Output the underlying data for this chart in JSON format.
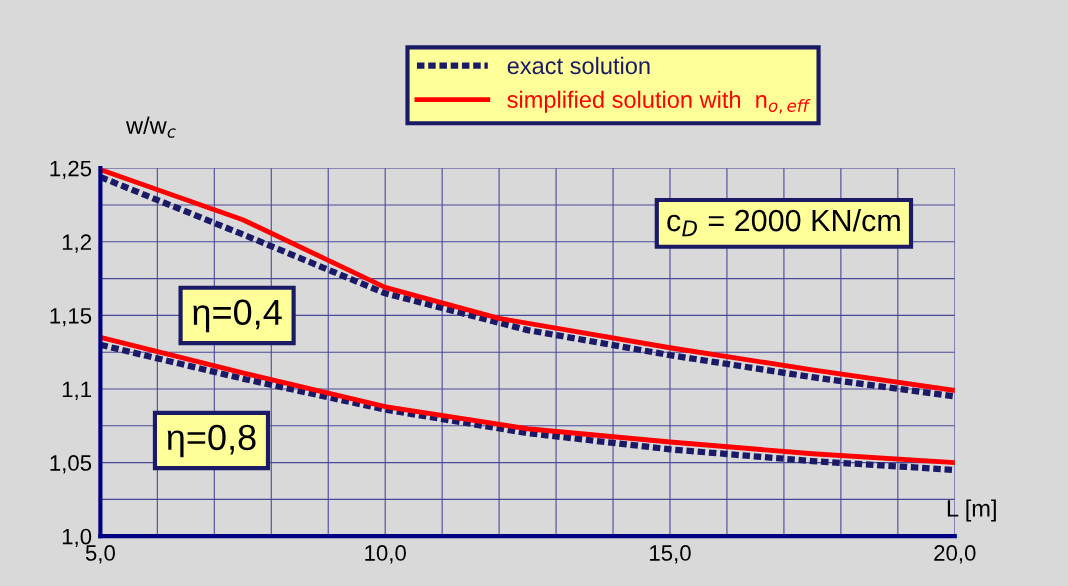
{
  "chart_data": {
    "type": "line",
    "xlabel": "L [m]",
    "ylabel": "w/w$_{c}$",
    "xlim": [
      5,
      20
    ],
    "ylim": [
      1.0,
      1.25
    ],
    "xticks": [
      {
        "value": 5,
        "label": "5,0"
      },
      {
        "value": 6,
        "label": null
      },
      {
        "value": 7,
        "label": null
      },
      {
        "value": 8,
        "label": null
      },
      {
        "value": 9,
        "label": null
      },
      {
        "value": 10,
        "label": "10,0"
      },
      {
        "value": 11,
        "label": null
      },
      {
        "value": 12,
        "label": null
      },
      {
        "value": 13,
        "label": null
      },
      {
        "value": 14,
        "label": null
      },
      {
        "value": 15,
        "label": "15,0"
      },
      {
        "value": 16,
        "label": null
      },
      {
        "value": 17,
        "label": null
      },
      {
        "value": 18,
        "label": null
      },
      {
        "value": 19,
        "label": null
      },
      {
        "value": 20,
        "label": "20,0"
      }
    ],
    "yticks": [
      {
        "value": 1.0,
        "label": "1,0"
      },
      {
        "value": 1.025,
        "label": null
      },
      {
        "value": 1.05,
        "label": "1,05"
      },
      {
        "value": 1.075,
        "label": null
      },
      {
        "value": 1.1,
        "label": "1,1"
      },
      {
        "value": 1.125,
        "label": null
      },
      {
        "value": 1.15,
        "label": "1,15"
      },
      {
        "value": 1.175,
        "label": null
      },
      {
        "value": 1.2,
        "label": "1,2"
      },
      {
        "value": 1.225,
        "label": null
      },
      {
        "value": 1.25,
        "label": "1,25"
      }
    ],
    "grid": true,
    "legend": "top",
    "series": [
      {
        "name": "exact solution",
        "color": "#1a1a66",
        "line_style": "dashed",
        "x": [
          5,
          7.5,
          10,
          12.5,
          15,
          17.5,
          20
        ],
        "values": [
          1.244,
          1.205,
          1.165,
          1.14,
          1.123,
          1.108,
          1.095
        ]
      },
      {
        "name": "simplified solution with  n$_{o,eff}$",
        "color": "#ff0000",
        "line_style": "solid",
        "x": [
          5,
          7.5,
          10,
          12,
          15,
          17.5,
          20
        ],
        "values": [
          1.249,
          1.215,
          1.169,
          1.148,
          1.128,
          1.113,
          1.099
        ]
      },
      {
        "color": "#1a1a66",
        "line_style": "dashed",
        "x": [
          5,
          7.5,
          10,
          12.5,
          15,
          17.5,
          20
        ],
        "values": [
          1.13,
          1.107,
          1.086,
          1.07,
          1.059,
          1.051,
          1.045
        ]
      },
      {
        "color": "#ff0000",
        "line_style": "solid",
        "x": [
          5,
          7.5,
          10,
          12.5,
          15,
          17.5,
          20
        ],
        "values": [
          1.135,
          1.111,
          1.088,
          1.073,
          1.064,
          1.056,
          1.05
        ]
      }
    ],
    "annotations": [
      "η=0,4",
      "η=0,8",
      "c$_{D}$ = 2000 KN/cm"
    ]
  }
}
